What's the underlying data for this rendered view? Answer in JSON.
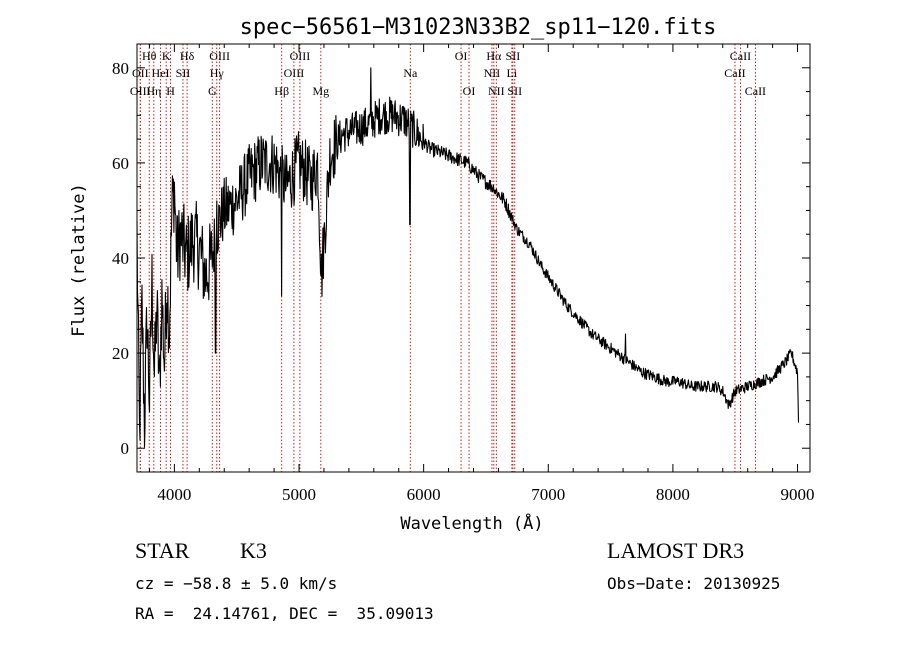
{
  "chart_data": {
    "type": "line",
    "title": "spec−56561−M31023N33B2_sp11−120.fits",
    "xlabel": "Wavelength (Å)",
    "ylabel": "Flux (relative)",
    "xlim": [
      3700,
      9100
    ],
    "ylim": [
      -5,
      85
    ],
    "x_ticks": [
      4000,
      5000,
      6000,
      7000,
      8000,
      9000
    ],
    "y_ticks": [
      0,
      20,
      40,
      60,
      80
    ],
    "grid": false,
    "line_color": "#000000",
    "marker_line_color": "#cc0000",
    "spectrum_anchors": [
      [
        3700,
        45
      ],
      [
        3720,
        2
      ],
      [
        3740,
        30
      ],
      [
        3760,
        5
      ],
      [
        3780,
        28
      ],
      [
        3800,
        10
      ],
      [
        3820,
        35
      ],
      [
        3840,
        15
      ],
      [
        3860,
        30
      ],
      [
        3880,
        12
      ],
      [
        3900,
        32
      ],
      [
        3920,
        18
      ],
      [
        3940,
        35
      ],
      [
        3960,
        25
      ],
      [
        3980,
        50
      ],
      [
        4000,
        55
      ],
      [
        4020,
        40
      ],
      [
        4050,
        45
      ],
      [
        4100,
        40
      ],
      [
        4150,
        44
      ],
      [
        4200,
        42
      ],
      [
        4250,
        36
      ],
      [
        4300,
        40
      ],
      [
        4350,
        47
      ],
      [
        4400,
        50
      ],
      [
        4500,
        52
      ],
      [
        4600,
        57
      ],
      [
        4700,
        60
      ],
      [
        4800,
        60
      ],
      [
        4900,
        55
      ],
      [
        5000,
        60
      ],
      [
        5100,
        56
      ],
      [
        5150,
        60
      ],
      [
        5180,
        36
      ],
      [
        5250,
        62
      ],
      [
        5350,
        66
      ],
      [
        5450,
        67
      ],
      [
        5550,
        68
      ],
      [
        5650,
        70
      ],
      [
        5750,
        70
      ],
      [
        5850,
        69
      ],
      [
        5950,
        66
      ],
      [
        6050,
        63
      ],
      [
        6150,
        62
      ],
      [
        6250,
        61
      ],
      [
        6350,
        60
      ],
      [
        6450,
        57
      ],
      [
        6550,
        55
      ],
      [
        6650,
        52
      ],
      [
        6750,
        46
      ],
      [
        6850,
        43
      ],
      [
        6950,
        38
      ],
      [
        7050,
        34
      ],
      [
        7150,
        30
      ],
      [
        7250,
        27
      ],
      [
        7350,
        24
      ],
      [
        7450,
        22
      ],
      [
        7550,
        20
      ],
      [
        7650,
        18
      ],
      [
        7750,
        16
      ],
      [
        7850,
        15
      ],
      [
        7950,
        14
      ],
      [
        8050,
        14
      ],
      [
        8150,
        13
      ],
      [
        8250,
        13
      ],
      [
        8350,
        13
      ],
      [
        8400,
        12
      ],
      [
        8450,
        9
      ],
      [
        8500,
        12
      ],
      [
        8600,
        13
      ],
      [
        8700,
        14
      ],
      [
        8800,
        15
      ],
      [
        8900,
        18
      ],
      [
        8950,
        20
      ],
      [
        9000,
        16
      ],
      [
        9010,
        3
      ]
    ],
    "spectrum_spikes": [
      [
        4330,
        20
      ],
      [
        4340,
        52
      ],
      [
        4860,
        32
      ],
      [
        5890,
        47
      ],
      [
        5577,
        80
      ],
      [
        6563,
        54
      ],
      [
        7620,
        24
      ]
    ],
    "line_markers": [
      {
        "label": "Hθ",
        "wavelength": 3798,
        "row": 0
      },
      {
        "label": "OII",
        "wavelength": 3727,
        "row": 1
      },
      {
        "label": "OIII",
        "wavelength": 3726,
        "row": 2
      },
      {
        "label": "K",
        "wavelength": 3934,
        "row": 0
      },
      {
        "label": "HeI",
        "wavelength": 3889,
        "row": 1
      },
      {
        "label": "Hη",
        "wavelength": 3835,
        "row": 2
      },
      {
        "label": "SII",
        "wavelength": 4069,
        "row": 1
      },
      {
        "label": "H",
        "wavelength": 3969,
        "row": 2
      },
      {
        "label": "Hδ",
        "wavelength": 4102,
        "row": 0
      },
      {
        "label": "OIII",
        "wavelength": 4363,
        "row": 0
      },
      {
        "label": "Hγ",
        "wavelength": 4340,
        "row": 1
      },
      {
        "label": "G",
        "wavelength": 4304,
        "row": 2
      },
      {
        "label": "Hβ",
        "wavelength": 4861,
        "row": 2
      },
      {
        "label": "OIII",
        "wavelength": 5007,
        "row": 0
      },
      {
        "label": "OIII",
        "wavelength": 4959,
        "row": 1
      },
      {
        "label": "Mg",
        "wavelength": 5175,
        "row": 2
      },
      {
        "label": "Na",
        "wavelength": 5893,
        "row": 1
      },
      {
        "label": "OI",
        "wavelength": 6300,
        "row": 0
      },
      {
        "label": "OI",
        "wavelength": 6364,
        "row": 2
      },
      {
        "label": "Hα",
        "wavelength": 6563,
        "row": 0
      },
      {
        "label": "NII",
        "wavelength": 6548,
        "row": 1
      },
      {
        "label": "NII",
        "wavelength": 6583,
        "row": 2
      },
      {
        "label": "SII",
        "wavelength": 6716,
        "row": 0
      },
      {
        "label": "Li",
        "wavelength": 6708,
        "row": 1
      },
      {
        "label": "SII",
        "wavelength": 6731,
        "row": 2
      },
      {
        "label": "CaII",
        "wavelength": 8542,
        "row": 0
      },
      {
        "label": "CaII",
        "wavelength": 8498,
        "row": 1
      },
      {
        "label": "CaII",
        "wavelength": 8662,
        "row": 2
      }
    ]
  },
  "info": {
    "object_class": "STAR",
    "subclass": "K3",
    "survey": "LAMOST DR3",
    "redshift_line": "cz = −58.8 ± 5.0 km/s",
    "obs_date_line": "Obs−Date: 20130925",
    "coords_line": "RA =  24.14761, DEC =  35.09013"
  }
}
